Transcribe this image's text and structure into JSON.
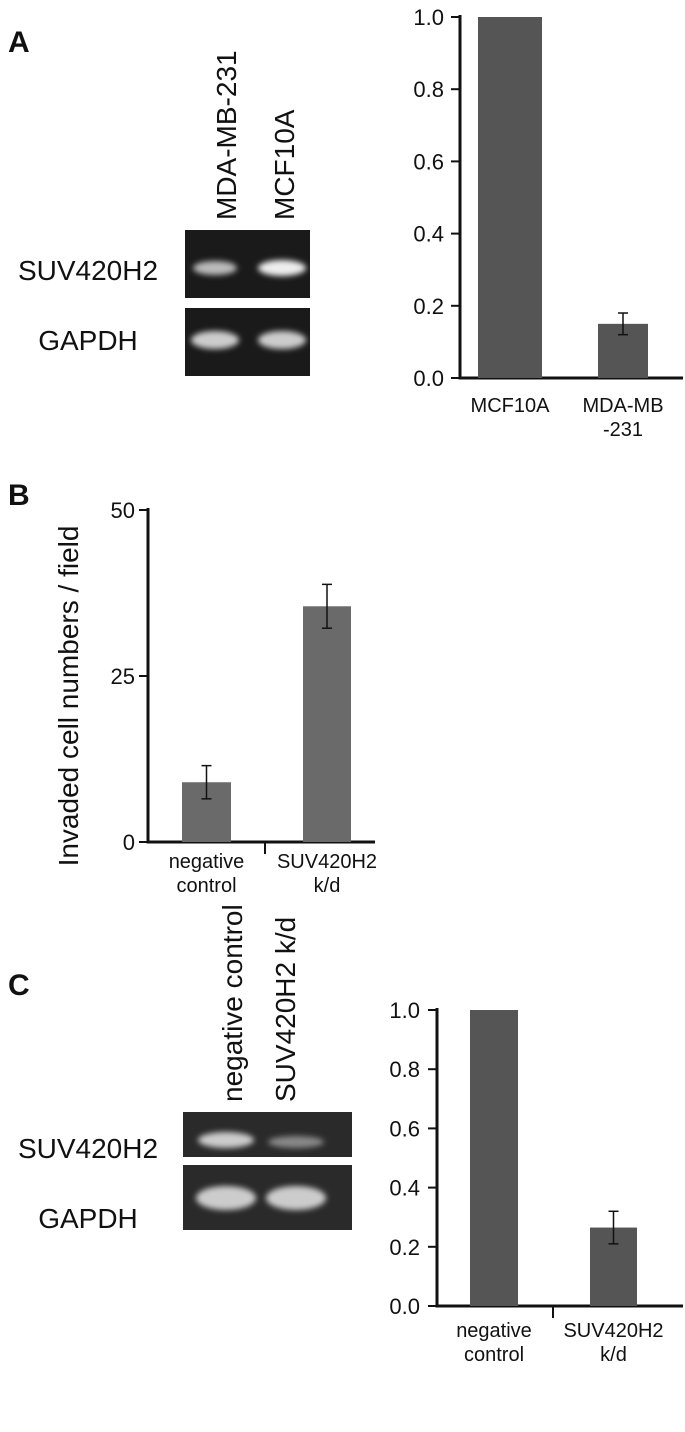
{
  "panels": [
    "A",
    "B",
    "C"
  ],
  "gels": [
    {
      "lanes": [
        "MDA-MB-231",
        "MCF10A"
      ],
      "rows": [
        "SUV420H2",
        "GAPDH"
      ]
    },
    {
      "lanes": [
        "negative control",
        "SUV420H2 k/d"
      ],
      "rows": [
        "SUV420H2",
        "GAPDH"
      ]
    }
  ],
  "chart_data": [
    {
      "type": "bar",
      "categories": [
        "MCF10A",
        "MDA-MB\n-231"
      ],
      "values": [
        1.0,
        0.15
      ],
      "errors": [
        null,
        0.03
      ],
      "color": "#555555",
      "ylim": [
        0,
        1.0
      ],
      "yticks": [
        {
          "value": 0,
          "label": "0.0"
        },
        {
          "value": 0.2,
          "label": "0.2"
        },
        {
          "value": 0.4,
          "label": "0.4"
        },
        {
          "value": 0.6,
          "label": "0.6"
        },
        {
          "value": 0.8,
          "label": "0.8"
        },
        {
          "value": 1.0,
          "label": "1.0"
        }
      ]
    },
    {
      "type": "bar",
      "ylabel": "Invaded  cell numbers / field",
      "categories": [
        "negative\ncontrol",
        "SUV420H2\nk/d"
      ],
      "values": [
        9,
        35.5
      ],
      "errors": [
        2.5,
        3.3
      ],
      "color": "#6a6a6a",
      "ylim": [
        0,
        50
      ],
      "yticks": [
        0,
        25,
        50
      ]
    },
    {
      "type": "bar",
      "categories": [
        "negative\ncontrol",
        "SUV420H2\nk/d"
      ],
      "values": [
        1.0,
        0.265
      ],
      "errors": [
        null,
        0.055
      ],
      "color": "#555555",
      "ylim": [
        0,
        1.0
      ],
      "yticks": [
        {
          "value": 0,
          "label": "0.0"
        },
        {
          "value": 0.2,
          "label": "0.2"
        },
        {
          "value": 0.4,
          "label": "0.4"
        },
        {
          "value": 0.6,
          "label": "0.6"
        },
        {
          "value": 0.8,
          "label": "0.8"
        },
        {
          "value": 1.0,
          "label": "1.0"
        }
      ]
    }
  ]
}
